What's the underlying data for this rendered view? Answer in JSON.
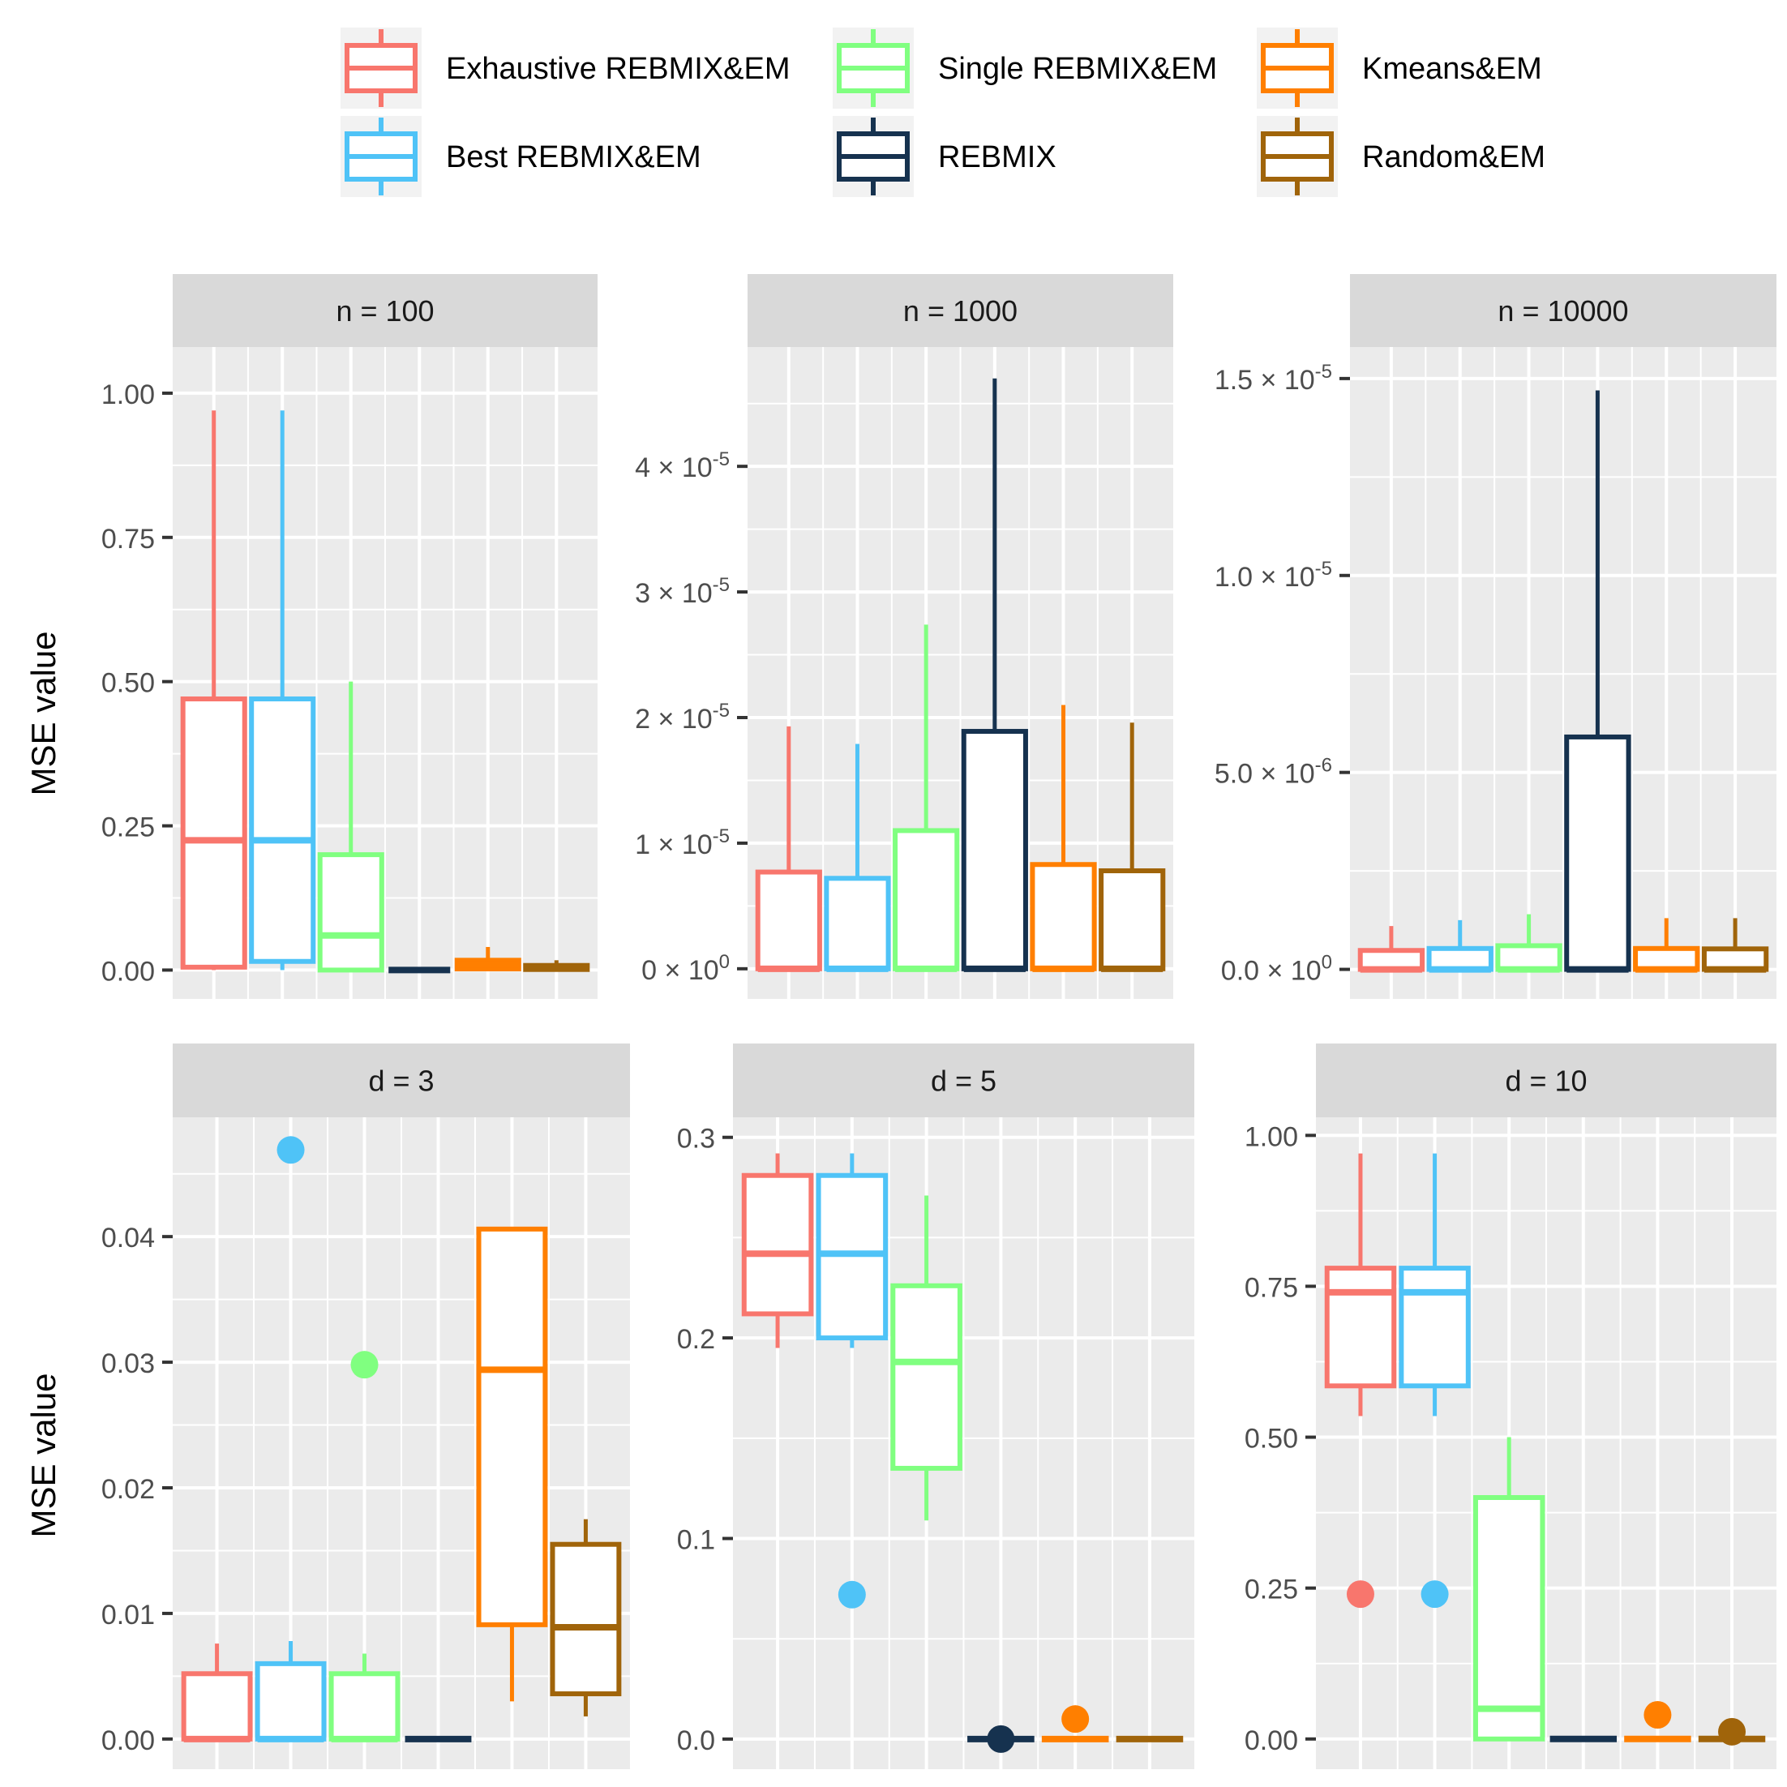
{
  "legend": {
    "position": "top",
    "entries": [
      {
        "name": "Exhaustive REBMIX&EM",
        "color": "#F8766D"
      },
      {
        "name": "Best REBMIX&EM",
        "color": "#4FC3F7"
      },
      {
        "name": "Single REBMIX&EM",
        "color": "#80FF80"
      },
      {
        "name": "REBMIX",
        "color": "#16324F"
      },
      {
        "name": "Kmeans&EM",
        "color": "#FF7F00"
      },
      {
        "name": "Random&EM",
        "color": "#A0640A"
      }
    ]
  },
  "y_axis_label": "MSE value",
  "chart_data": [
    {
      "type": "boxplot",
      "strip": "n = 100",
      "ylim": [
        -0.05,
        1.08
      ],
      "y_ticks": [
        {
          "v": 0,
          "label": "0.00"
        },
        {
          "v": 0.25,
          "label": "0.25"
        },
        {
          "v": 0.5,
          "label": "0.50"
        },
        {
          "v": 0.75,
          "label": "0.75"
        },
        {
          "v": 1.0,
          "label": "1.00"
        }
      ],
      "series": [
        {
          "name": "Exhaustive REBMIX&EM",
          "min": 0.0,
          "q1": 0.005,
          "median": 0.225,
          "q3": 0.47,
          "max": 0.97,
          "outliers": []
        },
        {
          "name": "Best REBMIX&EM",
          "min": 0.0,
          "q1": 0.015,
          "median": 0.225,
          "q3": 0.47,
          "max": 0.97,
          "outliers": []
        },
        {
          "name": "Single REBMIX&EM",
          "min": 0.0,
          "q1": 0.0,
          "median": 0.06,
          "q3": 0.2,
          "max": 0.5,
          "outliers": []
        },
        {
          "name": "REBMIX",
          "min": 0.0,
          "q1": 0.0,
          "median": 0.0,
          "q3": 0.0,
          "max": 0.0,
          "outliers": []
        },
        {
          "name": "Kmeans&EM",
          "min": 0.0,
          "q1": 0.002,
          "median": 0.01,
          "q3": 0.017,
          "max": 0.04,
          "outliers": []
        },
        {
          "name": "Random&EM",
          "min": 0.0,
          "q1": 0.001,
          "median": 0.005,
          "q3": 0.008,
          "max": 0.017,
          "outliers": []
        }
      ]
    },
    {
      "type": "boxplot",
      "strip": "n = 1000",
      "ylim": [
        -2.4e-06,
        4.95e-05
      ],
      "y_ticks": [
        {
          "v": 0,
          "label": "0 × 10",
          "exp": "0"
        },
        {
          "v": 1e-05,
          "label": "1 × 10",
          "exp": "-5"
        },
        {
          "v": 2e-05,
          "label": "2 × 10",
          "exp": "-5"
        },
        {
          "v": 3e-05,
          "label": "3 × 10",
          "exp": "-5"
        },
        {
          "v": 4e-05,
          "label": "4 × 10",
          "exp": "-5"
        }
      ],
      "series": [
        {
          "name": "Exhaustive REBMIX&EM",
          "min": 0.0,
          "q1": 0.0,
          "median": 0.0,
          "q3": 7.7e-06,
          "max": 1.93e-05,
          "outliers": []
        },
        {
          "name": "Best REBMIX&EM",
          "min": 0.0,
          "q1": 0.0,
          "median": 0.0,
          "q3": 7.2e-06,
          "max": 1.79e-05,
          "outliers": []
        },
        {
          "name": "Single REBMIX&EM",
          "min": 0.0,
          "q1": 0.0,
          "median": 0.0,
          "q3": 1.1e-05,
          "max": 2.74e-05,
          "outliers": []
        },
        {
          "name": "REBMIX",
          "min": 0.0,
          "q1": 0.0,
          "median": 0.0,
          "q3": 1.89e-05,
          "max": 4.7e-05,
          "outliers": []
        },
        {
          "name": "Kmeans&EM",
          "min": 0.0,
          "q1": 0.0,
          "median": 0.0,
          "q3": 8.3e-06,
          "max": 2.1e-05,
          "outliers": []
        },
        {
          "name": "Random&EM",
          "min": 0.0,
          "q1": 0.0,
          "median": 0.0,
          "q3": 7.8e-06,
          "max": 1.96e-05,
          "outliers": []
        }
      ]
    },
    {
      "type": "boxplot",
      "strip": "n = 10000",
      "ylim": [
        -7.5e-07,
        1.58e-05
      ],
      "y_ticks": [
        {
          "v": 0,
          "label": "0.0 × 10",
          "exp": "0"
        },
        {
          "v": 5e-06,
          "label": "5.0 × 10",
          "exp": "-6"
        },
        {
          "v": 1e-05,
          "label": "1.0 × 10",
          "exp": "-5"
        },
        {
          "v": 1.5e-05,
          "label": "1.5 × 10",
          "exp": "-5"
        }
      ],
      "series": [
        {
          "name": "Exhaustive REBMIX&EM",
          "min": 0.0,
          "q1": 0.0,
          "median": 0.0,
          "q3": 4.8e-07,
          "max": 1.1e-06,
          "outliers": []
        },
        {
          "name": "Best REBMIX&EM",
          "min": 0.0,
          "q1": 0.0,
          "median": 0.0,
          "q3": 5.3e-07,
          "max": 1.25e-06,
          "outliers": []
        },
        {
          "name": "Single REBMIX&EM",
          "min": 0.0,
          "q1": 0.0,
          "median": 0.0,
          "q3": 6e-07,
          "max": 1.4e-06,
          "outliers": []
        },
        {
          "name": "REBMIX",
          "min": 0.0,
          "q1": 0.0,
          "median": 0.0,
          "q3": 5.9e-06,
          "max": 1.47e-05,
          "outliers": []
        },
        {
          "name": "Kmeans&EM",
          "min": 0.0,
          "q1": 0.0,
          "median": 0.0,
          "q3": 5.3e-07,
          "max": 1.3e-06,
          "outliers": []
        },
        {
          "name": "Random&EM",
          "min": 0.0,
          "q1": 0.0,
          "median": 0.0,
          "q3": 5.2e-07,
          "max": 1.3e-06,
          "outliers": []
        }
      ]
    },
    {
      "type": "boxplot",
      "strip": "d = 3",
      "ylim": [
        -0.0024,
        0.0495
      ],
      "y_ticks": [
        {
          "v": 0,
          "label": "0.00"
        },
        {
          "v": 0.01,
          "label": "0.01"
        },
        {
          "v": 0.02,
          "label": "0.02"
        },
        {
          "v": 0.03,
          "label": "0.03"
        },
        {
          "v": 0.04,
          "label": "0.04"
        }
      ],
      "series": [
        {
          "name": "Exhaustive REBMIX&EM",
          "min": 0.0,
          "q1": 0.0,
          "median": 0.0,
          "q3": 0.0052,
          "max": 0.0076,
          "outliers": []
        },
        {
          "name": "Best REBMIX&EM",
          "min": 0.0,
          "q1": 0.0,
          "median": 0.0,
          "q3": 0.006,
          "max": 0.0078,
          "outliers": [
            0.0469
          ]
        },
        {
          "name": "Single REBMIX&EM",
          "min": 0.0,
          "q1": 0.0,
          "median": 0.0,
          "q3": 0.0052,
          "max": 0.0068,
          "outliers": [
            0.0298
          ]
        },
        {
          "name": "REBMIX",
          "min": 0.0,
          "q1": 0.0,
          "median": 0.0,
          "q3": 0.0,
          "max": 0.0,
          "outliers": []
        },
        {
          "name": "Kmeans&EM",
          "min": 0.003,
          "q1": 0.0091,
          "median": 0.0294,
          "q3": 0.0406,
          "max": 0.0406,
          "outliers": []
        },
        {
          "name": "Random&EM",
          "min": 0.0018,
          "q1": 0.0036,
          "median": 0.0089,
          "q3": 0.0155,
          "max": 0.0175,
          "outliers": []
        }
      ]
    },
    {
      "type": "boxplot",
      "strip": "d = 5",
      "ylim": [
        -0.015,
        0.31
      ],
      "y_ticks": [
        {
          "v": 0,
          "label": "0.0"
        },
        {
          "v": 0.1,
          "label": "0.1"
        },
        {
          "v": 0.2,
          "label": "0.2"
        },
        {
          "v": 0.3,
          "label": "0.3"
        }
      ],
      "series": [
        {
          "name": "Exhaustive REBMIX&EM",
          "min": 0.195,
          "q1": 0.212,
          "median": 0.242,
          "q3": 0.281,
          "max": 0.292,
          "outliers": []
        },
        {
          "name": "Best REBMIX&EM",
          "min": 0.195,
          "q1": 0.2,
          "median": 0.242,
          "q3": 0.281,
          "max": 0.292,
          "outliers": [
            0.072
          ]
        },
        {
          "name": "Single REBMIX&EM",
          "min": 0.109,
          "q1": 0.135,
          "median": 0.188,
          "q3": 0.226,
          "max": 0.271,
          "outliers": []
        },
        {
          "name": "REBMIX",
          "min": 0.0,
          "q1": 0.0,
          "median": 0.0,
          "q3": 0.0,
          "max": 0.0,
          "outliers": [
            0.0
          ]
        },
        {
          "name": "Kmeans&EM",
          "min": 0.0,
          "q1": 0.0,
          "median": 0.0,
          "q3": 0.0,
          "max": 0.0,
          "outliers": [
            0.01
          ]
        },
        {
          "name": "Random&EM",
          "min": 0.0,
          "q1": 0.0,
          "median": 0.0,
          "q3": 0.0,
          "max": 0.0,
          "outliers": []
        }
      ]
    },
    {
      "type": "boxplot",
      "strip": "d = 10",
      "ylim": [
        -0.05,
        1.03
      ],
      "y_ticks": [
        {
          "v": 0,
          "label": "0.00"
        },
        {
          "v": 0.25,
          "label": "0.25"
        },
        {
          "v": 0.5,
          "label": "0.50"
        },
        {
          "v": 0.75,
          "label": "0.75"
        },
        {
          "v": 1.0,
          "label": "1.00"
        }
      ],
      "series": [
        {
          "name": "Exhaustive REBMIX&EM",
          "min": 0.535,
          "q1": 0.585,
          "median": 0.74,
          "q3": 0.78,
          "max": 0.97,
          "outliers": [
            0.24
          ]
        },
        {
          "name": "Best REBMIX&EM",
          "min": 0.535,
          "q1": 0.585,
          "median": 0.74,
          "q3": 0.78,
          "max": 0.97,
          "outliers": [
            0.24
          ]
        },
        {
          "name": "Single REBMIX&EM",
          "min": 0.0,
          "q1": 0.0,
          "median": 0.05,
          "q3": 0.4,
          "max": 0.5,
          "outliers": []
        },
        {
          "name": "REBMIX",
          "min": 0.0,
          "q1": 0.0,
          "median": 0.0,
          "q3": 0.0,
          "max": 0.0,
          "outliers": []
        },
        {
          "name": "Kmeans&EM",
          "min": 0.0,
          "q1": 0.0,
          "median": 0.0,
          "q3": 0.0,
          "max": 0.0,
          "outliers": [
            0.04
          ]
        },
        {
          "name": "Random&EM",
          "min": 0.0,
          "q1": 0.0,
          "median": 0.0,
          "q3": 0.0,
          "max": 0.0,
          "outliers": [
            0.012
          ]
        }
      ]
    }
  ]
}
